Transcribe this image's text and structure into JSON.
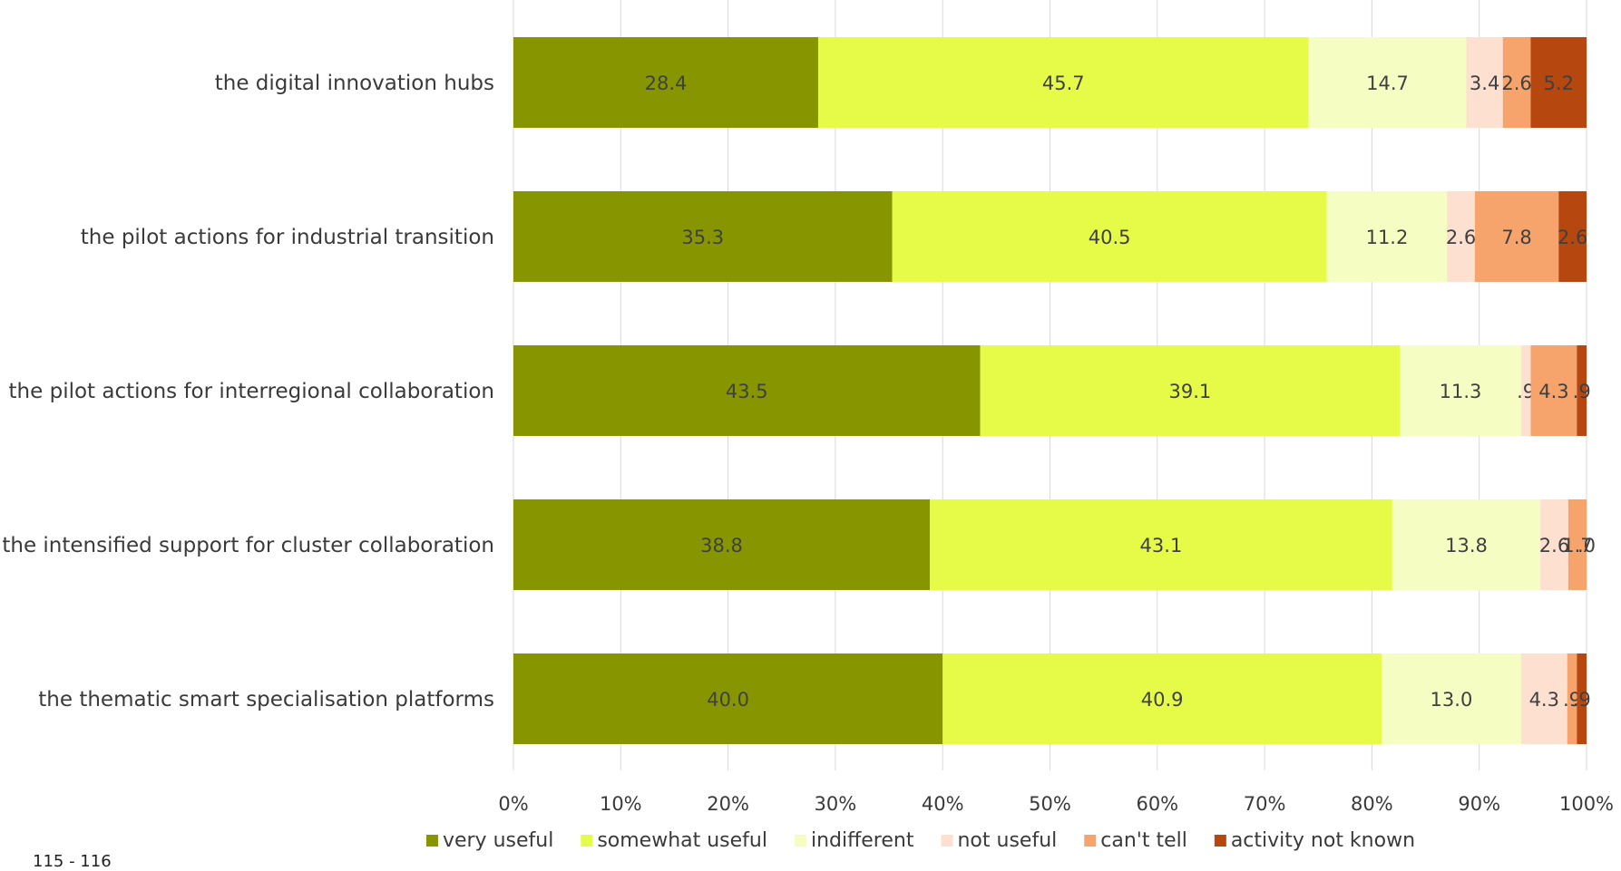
{
  "chart_data": {
    "type": "bar",
    "orientation": "horizontal",
    "stacked": "percent",
    "categories": [
      "the digital innovation hubs",
      "the pilot actions for industrial transition",
      "the pilot actions for interregional collaboration",
      "the intensified support for cluster collaboration",
      "the thematic smart specialisation platforms"
    ],
    "series": [
      {
        "name": "very useful",
        "color": "#879600",
        "values": [
          28.4,
          35.3,
          43.5,
          38.8,
          40.0
        ],
        "labels": [
          "28.4",
          "35.3",
          "43.5",
          "38.8",
          "40.0"
        ]
      },
      {
        "name": "somewhat useful",
        "color": "#e6fb48",
        "values": [
          45.7,
          40.5,
          39.1,
          43.1,
          40.9
        ],
        "labels": [
          "45.7",
          "40.5",
          "39.1",
          "43.1",
          "40.9"
        ]
      },
      {
        "name": "indifferent",
        "color": "#f6fdc2",
        "values": [
          14.7,
          11.2,
          11.3,
          13.8,
          13.0
        ],
        "labels": [
          "14.7",
          "11.2",
          "11.3",
          "13.8",
          "13.0"
        ]
      },
      {
        "name": "not useful",
        "color": "#fde0d0",
        "values": [
          3.4,
          2.6,
          0.9,
          2.6,
          4.3
        ],
        "labels": [
          "3.4",
          "2.6",
          ".9",
          "2.6",
          "4.3"
        ]
      },
      {
        "name": "can't tell",
        "color": "#f6a46b",
        "values": [
          2.6,
          7.8,
          4.3,
          1.7,
          0.9
        ],
        "labels": [
          "2.6",
          "7.8",
          "4.3",
          "1.7",
          ".9"
        ]
      },
      {
        "name": "activity not known",
        "color": "#b5470f",
        "values": [
          5.2,
          2.6,
          0.9,
          0.0,
          0.9
        ],
        "labels": [
          "5.2",
          "2.6",
          ".9",
          ".0",
          ".9"
        ]
      }
    ],
    "x_ticks": [
      "0%",
      "10%",
      "20%",
      "30%",
      "40%",
      "50%",
      "60%",
      "70%",
      "80%",
      "90%",
      "100%"
    ],
    "xlim": [
      0,
      100
    ],
    "grid": "vertical",
    "legend": "bottom"
  },
  "footnote": "115 - 116"
}
